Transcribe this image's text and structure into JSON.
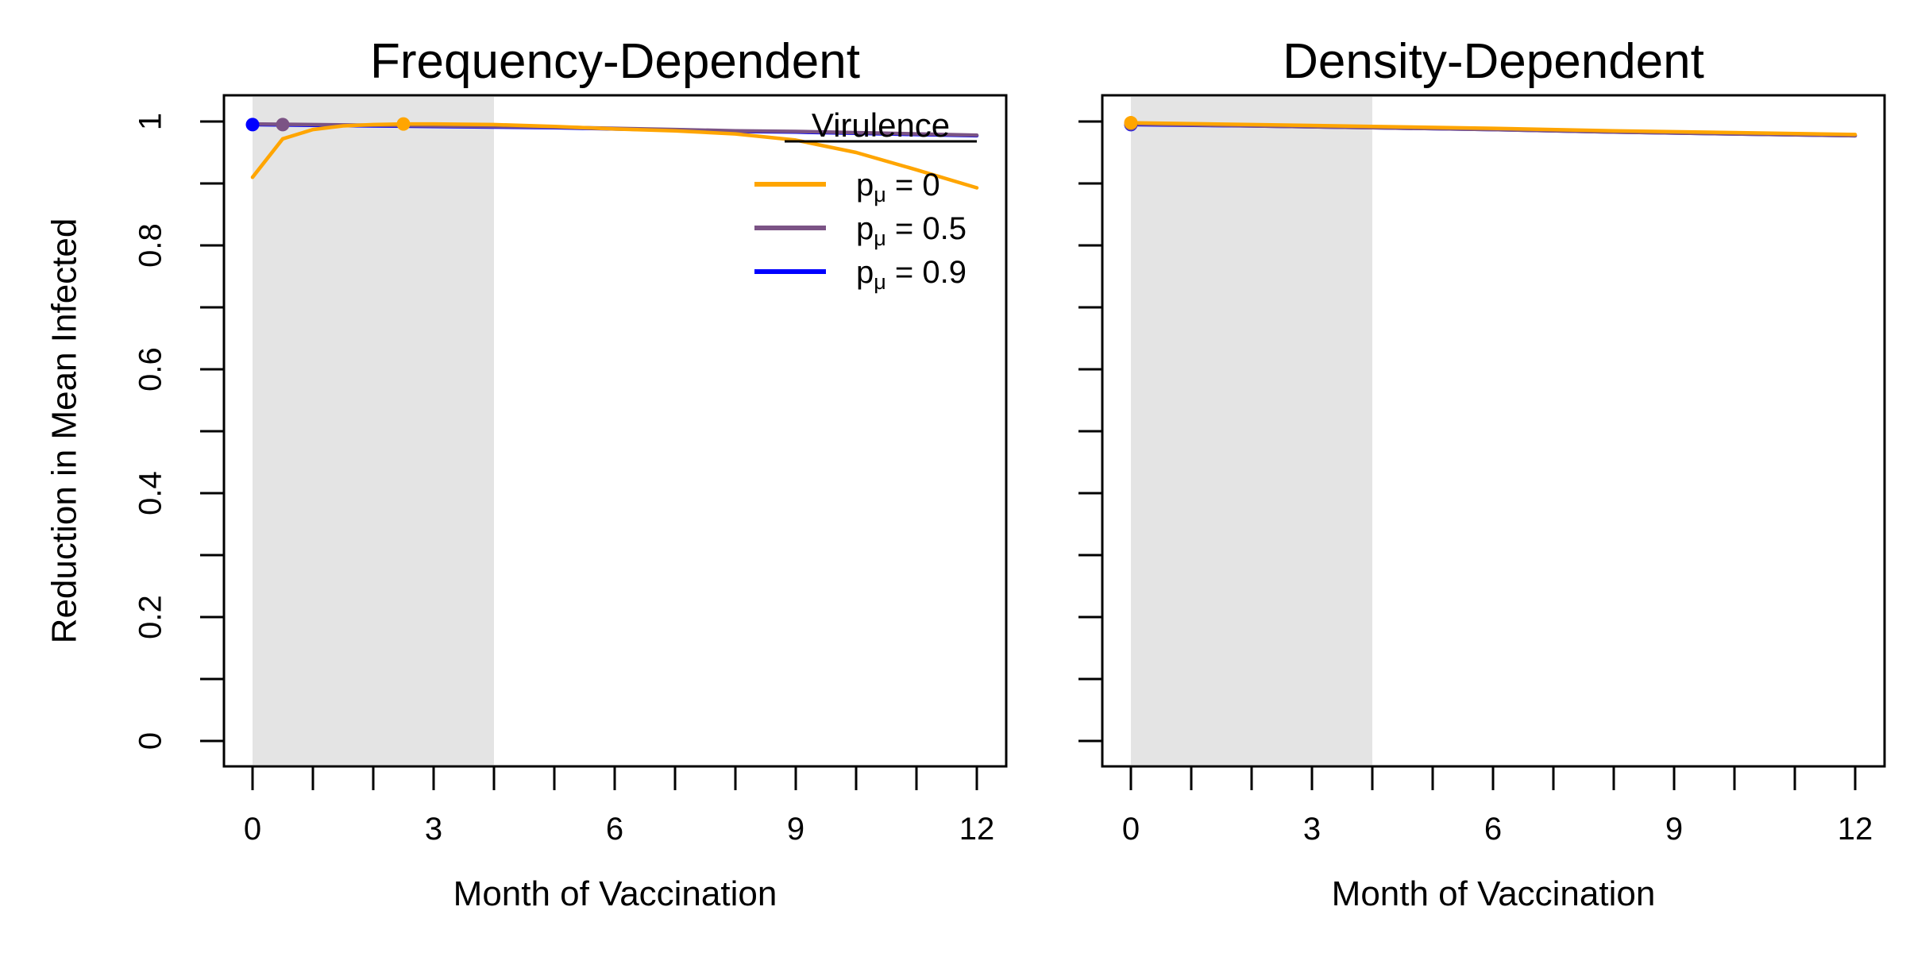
{
  "chart_data": [
    {
      "type": "line",
      "title": "Frequency-Dependent",
      "xlabel": "Month of Vaccination",
      "ylabel": "Reduction in Mean Infected",
      "xlim": [
        0,
        12
      ],
      "ylim": [
        0,
        1
      ],
      "x_ticks": [
        0,
        1,
        2,
        3,
        4,
        5,
        6,
        7,
        8,
        9,
        10,
        11,
        12
      ],
      "x_tick_labels": [
        "0",
        "3",
        "6",
        "9",
        "12"
      ],
      "x_tick_label_values": [
        0,
        3,
        6,
        9,
        12
      ],
      "y_ticks": [
        0,
        0.1,
        0.2,
        0.3,
        0.4,
        0.5,
        0.6,
        0.7,
        0.8,
        0.9,
        1
      ],
      "y_tick_labels": [
        "0",
        "0.2",
        "0.4",
        "0.6",
        "0.8",
        "1"
      ],
      "y_tick_label_values": [
        0,
        0.2,
        0.4,
        0.6,
        0.8,
        1
      ],
      "shaded_region": {
        "x": [
          0,
          4
        ],
        "color": "#e4e4e4"
      },
      "grid": false,
      "legend": {
        "title": "Virulence",
        "placement": "top-right",
        "entries": [
          {
            "symbol": "p",
            "subscript": "μ",
            "text": " = 0",
            "color": "#FFA500"
          },
          {
            "symbol": "p",
            "subscript": "μ",
            "text": " = 0.5",
            "color": "#7B5385"
          },
          {
            "symbol": "p",
            "subscript": "μ",
            "text": " = 0.9",
            "color": "#0000FF"
          }
        ]
      },
      "series": [
        {
          "name": "pμ = 0.9",
          "color": "#0000FF",
          "x": [
            0,
            1,
            2,
            3,
            4,
            5,
            6,
            7,
            8,
            9,
            10,
            11,
            12
          ],
          "values": [
            0.995,
            0.994,
            0.993,
            0.992,
            0.991,
            0.99,
            0.988,
            0.986,
            0.984,
            0.983,
            0.981,
            0.979,
            0.977
          ],
          "marker": {
            "x": 0,
            "y": 0.995
          }
        },
        {
          "name": "pμ = 0.5",
          "color": "#7B5385",
          "x": [
            0,
            1,
            2,
            3,
            4,
            5,
            6,
            7,
            8,
            9,
            10,
            11,
            12
          ],
          "values": [
            0.996,
            0.995,
            0.994,
            0.993,
            0.992,
            0.991,
            0.989,
            0.987,
            0.985,
            0.984,
            0.982,
            0.98,
            0.978
          ],
          "marker": {
            "x": 0.5,
            "y": 0.995
          }
        },
        {
          "name": "pμ = 0",
          "color": "#FFA500",
          "x": [
            0,
            0.5,
            1,
            1.5,
            2,
            2.5,
            3,
            4,
            5,
            6,
            7,
            8,
            9,
            10,
            11,
            12
          ],
          "values": [
            0.91,
            0.972,
            0.987,
            0.993,
            0.995,
            0.996,
            0.996,
            0.995,
            0.992,
            0.988,
            0.985,
            0.98,
            0.97,
            0.95,
            0.922,
            0.893
          ],
          "marker": {
            "x": 2.5,
            "y": 0.996
          }
        }
      ]
    },
    {
      "type": "line",
      "title": "Density-Dependent",
      "xlabel": "Month of Vaccination",
      "ylabel": "",
      "xlim": [
        0,
        12
      ],
      "ylim": [
        0,
        1
      ],
      "x_ticks": [
        0,
        1,
        2,
        3,
        4,
        5,
        6,
        7,
        8,
        9,
        10,
        11,
        12
      ],
      "x_tick_labels": [
        "0",
        "3",
        "6",
        "9",
        "12"
      ],
      "x_tick_label_values": [
        0,
        3,
        6,
        9,
        12
      ],
      "y_ticks": [
        0,
        0.1,
        0.2,
        0.3,
        0.4,
        0.5,
        0.6,
        0.7,
        0.8,
        0.9,
        1
      ],
      "y_tick_labels": [],
      "y_tick_label_values": [],
      "shaded_region": {
        "x": [
          0,
          4
        ],
        "color": "#e4e4e4"
      },
      "grid": false,
      "series": [
        {
          "name": "pμ = 0.9",
          "color": "#0000FF",
          "x": [
            0,
            2,
            4,
            6,
            8,
            10,
            12
          ],
          "values": [
            0.995,
            0.993,
            0.99,
            0.987,
            0.983,
            0.98,
            0.977
          ],
          "marker": {
            "x": 0,
            "y": 0.995
          }
        },
        {
          "name": "pμ = 0.5",
          "color": "#7B5385",
          "x": [
            0,
            2,
            4,
            6,
            8,
            10,
            12
          ],
          "values": [
            0.996,
            0.993,
            0.99,
            0.987,
            0.983,
            0.98,
            0.977
          ],
          "marker": {
            "x": 0,
            "y": 0.996
          }
        },
        {
          "name": "pμ = 0",
          "color": "#FFA500",
          "x": [
            0,
            2,
            4,
            6,
            8,
            10,
            12
          ],
          "values": [
            0.998,
            0.995,
            0.992,
            0.989,
            0.985,
            0.982,
            0.979
          ],
          "marker": {
            "x": 0,
            "y": 0.998
          }
        }
      ]
    }
  ]
}
